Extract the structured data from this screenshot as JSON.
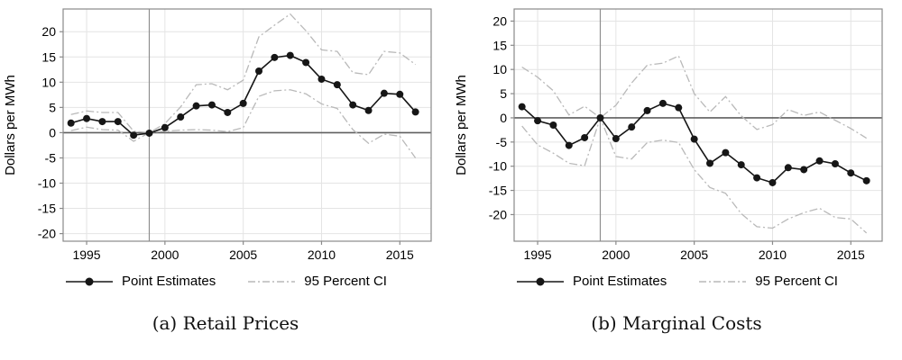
{
  "legend": {
    "point_estimates": "Point Estimates",
    "ci": "95 Percent CI"
  },
  "colors": {
    "point": "#161616",
    "ci": "#b9b9b9",
    "zero_line": "#5f5f5f",
    "ref_line": "#8f8f8f",
    "grid": "#e4e4e4",
    "border": "#8a8a8a",
    "tick_text": "#000000"
  },
  "chart_data": [
    {
      "type": "line",
      "caption": "(a) Retail Prices",
      "ylabel": "Dollars per MWh",
      "xticks": [
        1995,
        2000,
        2005,
        2010,
        2015
      ],
      "yticks": [
        20,
        15,
        10,
        5,
        0,
        -5,
        -10,
        -15,
        -20
      ],
      "xlim": [
        1993.5,
        2017.0
      ],
      "ylim": [
        -21.5,
        24.5
      ],
      "ref_line_x": 1999,
      "ref_line_y": 0,
      "grid": true,
      "legend_position": "bottom",
      "x": [
        1994,
        1995,
        1996,
        1997,
        1998,
        1999,
        2000,
        2001,
        2002,
        2003,
        2004,
        2005,
        2006,
        2007,
        2008,
        2009,
        2010,
        2011,
        2012,
        2013,
        2014,
        2015,
        2016
      ],
      "series": [
        {
          "name": "Point Estimates",
          "values": [
            1.9,
            2.8,
            2.2,
            2.2,
            -0.5,
            -0.1,
            1.0,
            3.1,
            5.3,
            5.5,
            4.0,
            5.8,
            12.2,
            14.9,
            15.3,
            13.9,
            10.6,
            9.5,
            5.5,
            4.4,
            7.8,
            7.6,
            4.1
          ]
        },
        {
          "name": "95 Percent CI (upper)",
          "values": [
            3.6,
            4.3,
            4.0,
            4.0,
            0.3,
            0.0,
            1.8,
            5.1,
            9.5,
            9.7,
            8.5,
            10.4,
            19.0,
            21.3,
            23.5,
            20.2,
            16.4,
            16.1,
            11.9,
            11.5,
            16.1,
            15.8,
            13.5
          ]
        },
        {
          "name": "95 Percent CI (lower)",
          "values": [
            0.4,
            1.1,
            0.6,
            0.5,
            -1.7,
            0.0,
            0.3,
            0.5,
            0.6,
            0.5,
            0.2,
            1.0,
            7.2,
            8.3,
            8.5,
            7.7,
            5.7,
            4.8,
            0.6,
            -2.1,
            -0.3,
            -0.7,
            -5.0
          ]
        }
      ]
    },
    {
      "type": "line",
      "caption": "(b) Marginal Costs",
      "ylabel": "Dollars per MWh",
      "xticks": [
        1995,
        2000,
        2005,
        2010,
        2015
      ],
      "yticks": [
        20,
        15,
        10,
        5,
        0,
        -5,
        -10,
        -15,
        -20
      ],
      "xlim": [
        1993.5,
        2017.0
      ],
      "ylim": [
        -25.5,
        22.5
      ],
      "ref_line_x": 1999,
      "ref_line_y": 0,
      "grid": true,
      "legend_position": "bottom",
      "x": [
        1994,
        1995,
        1996,
        1997,
        1998,
        1999,
        2000,
        2001,
        2002,
        2003,
        2004,
        2005,
        2006,
        2007,
        2008,
        2009,
        2010,
        2011,
        2012,
        2013,
        2014,
        2015,
        2016
      ],
      "series": [
        {
          "name": "Point Estimates",
          "values": [
            2.3,
            -0.6,
            -1.5,
            -5.7,
            -4.1,
            0.0,
            -4.3,
            -1.9,
            1.5,
            3.0,
            2.1,
            -4.4,
            -9.4,
            -7.2,
            -9.7,
            -12.4,
            -13.4,
            -10.3,
            -10.7,
            -8.9,
            -9.5,
            -11.4,
            -13.0
          ]
        },
        {
          "name": "95 Percent CI (upper)",
          "values": [
            10.5,
            8.4,
            5.6,
            0.6,
            2.4,
            0.0,
            2.6,
            7.2,
            10.9,
            11.3,
            12.8,
            5.0,
            1.2,
            4.4,
            0.4,
            -2.4,
            -1.4,
            1.7,
            0.5,
            1.2,
            -0.5,
            -2.2,
            -4.2
          ]
        },
        {
          "name": "95 Percent CI (lower)",
          "values": [
            -1.7,
            -5.6,
            -7.3,
            -9.4,
            -9.9,
            0.0,
            -8.0,
            -8.5,
            -5.1,
            -4.6,
            -5.1,
            -10.7,
            -14.4,
            -15.6,
            -19.8,
            -22.5,
            -22.8,
            -20.9,
            -19.6,
            -18.7,
            -20.6,
            -20.9,
            -23.8
          ]
        }
      ]
    }
  ]
}
